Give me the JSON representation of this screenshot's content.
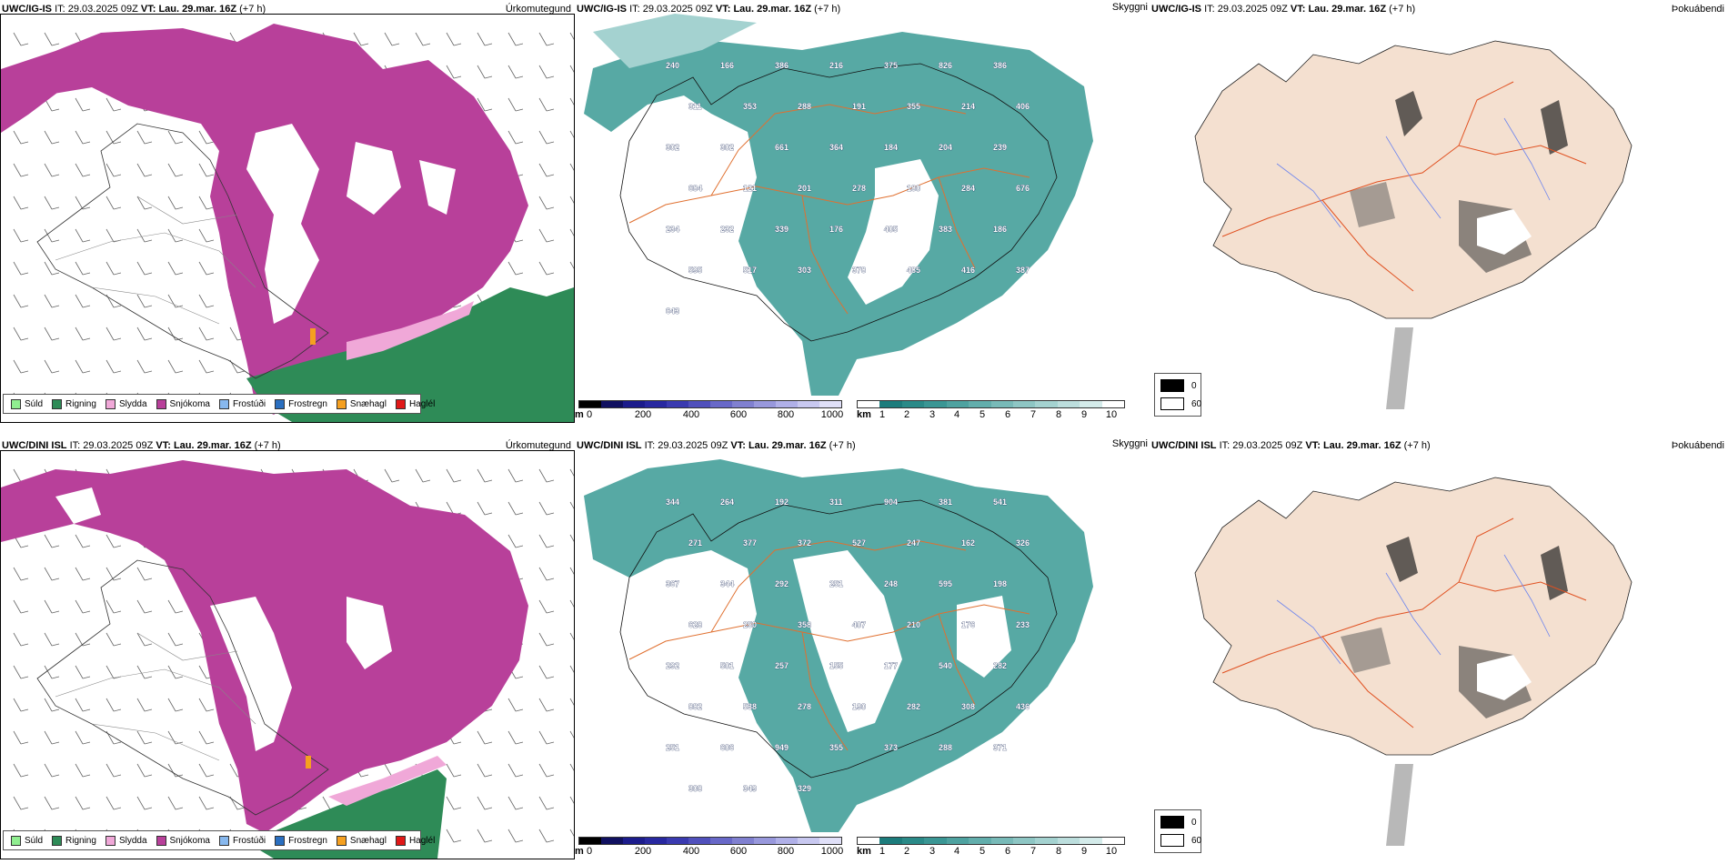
{
  "rows": [
    {
      "model": "UWC/IG-IS",
      "it_label": "IT:",
      "it_value": "29.03.2025 09Z",
      "vt_label": "VT:",
      "vt_value": "Lau. 29.mar. 16Z",
      "lead": "(+7 h)",
      "precip_title": "Úrkomutegund",
      "cloud_title": "Skyggni",
      "fog_title": "Þokuábendi",
      "elevations": [
        "240",
        "166",
        "386",
        "216",
        "375",
        "826",
        "386",
        "311",
        "353",
        "288",
        "191",
        "355",
        "214",
        "406",
        "302",
        "302",
        "661",
        "364",
        "184",
        "204",
        "239",
        "684",
        "121",
        "201",
        "278",
        "180",
        "284",
        "676",
        "234",
        "232",
        "339",
        "176",
        "405",
        "383",
        "186",
        "595",
        "517",
        "303",
        "378",
        "485",
        "416",
        "387",
        "643"
      ]
    },
    {
      "model": "UWC/DINI ISL",
      "it_label": "IT:",
      "it_value": "29.03.2025 09Z",
      "vt_label": "VT:",
      "vt_value": "Lau. 29.mar. 16Z",
      "lead": "(+7 h)",
      "precip_title": "Úrkomutegund",
      "cloud_title": "Skyggni",
      "fog_title": "Þokuábendi",
      "elevations": [
        "344",
        "264",
        "192",
        "311",
        "904",
        "381",
        "541",
        "271",
        "377",
        "372",
        "527",
        "247",
        "162",
        "326",
        "367",
        "344",
        "292",
        "251",
        "248",
        "595",
        "198",
        "628",
        "250",
        "358",
        "407",
        "210",
        "176",
        "233",
        "292",
        "501",
        "257",
        "155",
        "177",
        "540",
        "282",
        "882",
        "538",
        "278",
        "190",
        "282",
        "308",
        "436",
        "251",
        "606",
        "949",
        "355",
        "373",
        "288",
        "371",
        "308",
        "349",
        "329"
      ]
    }
  ],
  "precip_legend": [
    {
      "label": "Súld",
      "color": "#90ee90"
    },
    {
      "label": "Rigning",
      "color": "#2e8b57"
    },
    {
      "label": "Slydda",
      "color": "#f0a8d8"
    },
    {
      "label": "Snjókoma",
      "color": "#b8409a"
    },
    {
      "label": "Frostúði",
      "color": "#87b8ee"
    },
    {
      "label": "Frostregn",
      "color": "#2a6fc0"
    },
    {
      "label": "Snæhagl",
      "color": "#f5a020"
    },
    {
      "label": "Haglél",
      "color": "#e01818"
    }
  ],
  "cloudbase_scale": {
    "unit": "m",
    "ticks": [
      "0",
      "200",
      "400",
      "600",
      "800",
      "1000"
    ],
    "colors": [
      "#000000",
      "#101060",
      "#1c1c8c",
      "#2828a0",
      "#3a3ab0",
      "#5050bc",
      "#6868c8",
      "#8080d0",
      "#9898dc",
      "#b0b0e8",
      "#c8c8f0",
      "#e0e0f8"
    ]
  },
  "visibility_scale": {
    "unit": "km",
    "ticks": [
      "1",
      "2",
      "3",
      "4",
      "5",
      "6",
      "7",
      "8",
      "9",
      "10"
    ],
    "colors": [
      "#ffffff",
      "#1c7c7c",
      "#2a8a88",
      "#3a9694",
      "#4ea2a0",
      "#62aeac",
      "#78bab8",
      "#8ec6c4",
      "#a4d2d0",
      "#bcdedd",
      "#d4ebea",
      "#ffffff"
    ]
  },
  "fog_legend": [
    {
      "label": "0",
      "color": "#000000"
    },
    {
      "label": "60",
      "color": "#ffffff"
    }
  ],
  "colors": {
    "snow": "#b8409a",
    "rain": "#2e8b57",
    "sleet": "#f0a8d8",
    "teal": "#3a9a94",
    "land_tan": "#f4e0d0",
    "roads": "#e07030",
    "rivers": "#6c84ee"
  }
}
